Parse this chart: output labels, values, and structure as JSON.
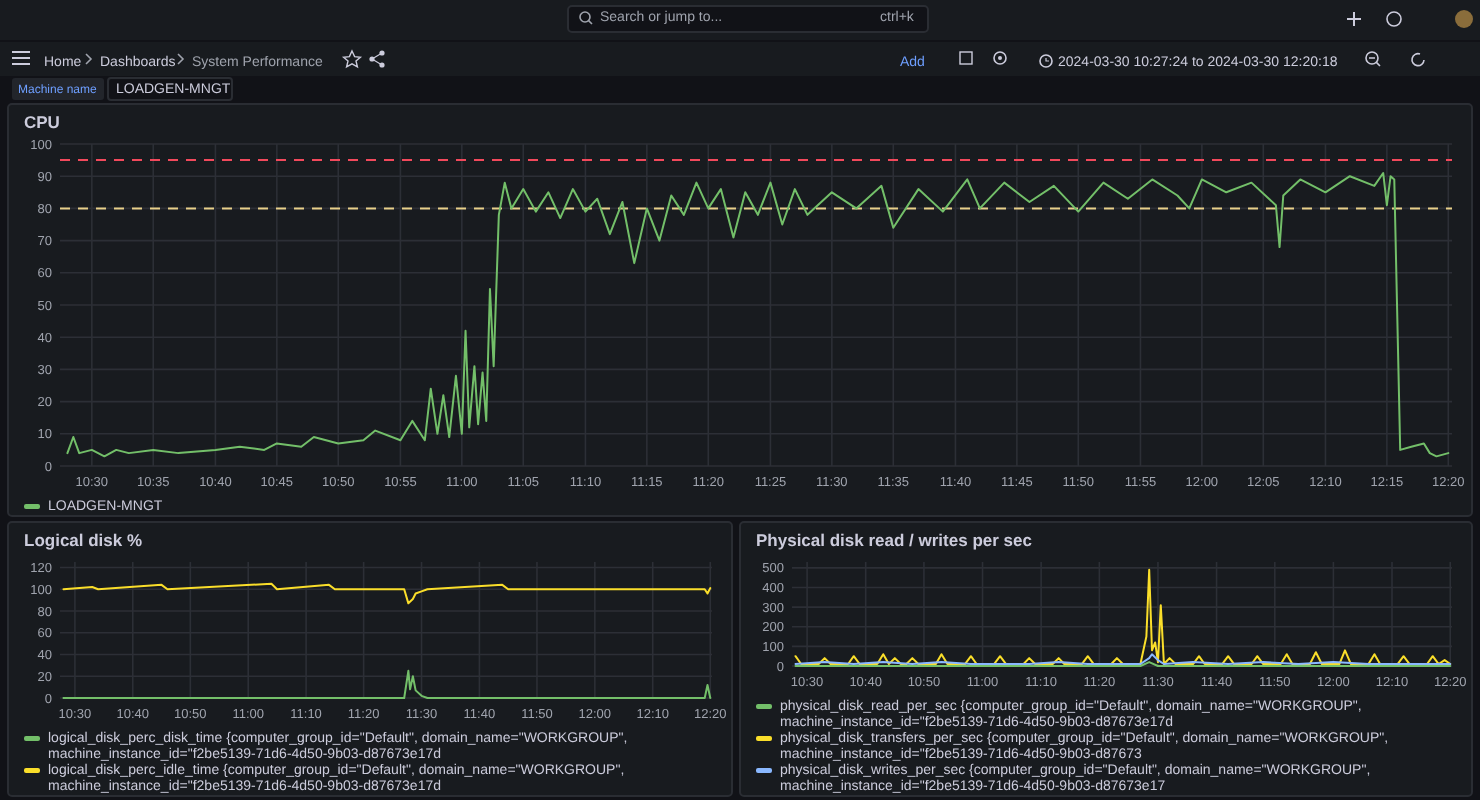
{
  "chart_data": [
    {
      "type": "other",
      "annotations": [
        "Home",
        "Dashboards",
        "System Performance",
        "Search or jump to...",
        "ctrl+k",
        "Add",
        "2024-03-30 10:27:24 to 2024-03-30 12:20:18",
        "Machine name",
        "LOADGEN-MNGT"
      ]
    },
    {
      "type": "line",
      "title": "CPU",
      "xlim": [
        10.457,
        12.338
      ],
      "ylim": [
        0,
        100
      ],
      "yticks": [
        0,
        10,
        20,
        30,
        40,
        50,
        60,
        70,
        80,
        90,
        100
      ],
      "xticks": [
        {
          "value": 10.5,
          "label": "10:30"
        },
        {
          "value": 10.583,
          "label": "10:35"
        },
        {
          "value": 10.667,
          "label": "10:40"
        },
        {
          "value": 10.75,
          "label": "10:45"
        },
        {
          "value": 10.833,
          "label": "10:50"
        },
        {
          "value": 10.917,
          "label": "10:55"
        },
        {
          "value": 11,
          "label": "11:00"
        },
        {
          "value": 11.083,
          "label": "11:05"
        },
        {
          "value": 11.167,
          "label": "11:10"
        },
        {
          "value": 11.25,
          "label": "11:15"
        },
        {
          "value": 11.333,
          "label": "11:20"
        },
        {
          "value": 11.417,
          "label": "11:25"
        },
        {
          "value": 11.5,
          "label": "11:30"
        },
        {
          "value": 11.583,
          "label": "11:35"
        },
        {
          "value": 11.667,
          "label": "11:40"
        },
        {
          "value": 11.75,
          "label": "11:45"
        },
        {
          "value": 11.833,
          "label": "11:50"
        },
        {
          "value": 11.917,
          "label": "11:55"
        },
        {
          "value": 12,
          "label": "12:00"
        },
        {
          "value": 12.083,
          "label": "12:05"
        },
        {
          "value": 12.167,
          "label": "12:10"
        },
        {
          "value": 12.25,
          "label": "12:15"
        },
        {
          "value": 12.333,
          "label": "12:20"
        }
      ],
      "grid": true,
      "legend": "bottom",
      "line_style": "solid",
      "ref_lines": [
        {
          "axis": "y",
          "value": 95,
          "color": "#f2495c",
          "line_style": "dashed"
        },
        {
          "axis": "y",
          "value": 80,
          "color": "#e8d08a",
          "line_style": "dashed"
        }
      ],
      "series": [
        {
          "name": "LOADGEN-MNGT",
          "color": "#73bf69",
          "x": [
            10.467,
            10.475,
            10.483,
            10.5,
            10.517,
            10.533,
            10.55,
            10.583,
            10.617,
            10.667,
            10.7,
            10.733,
            10.75,
            10.783,
            10.8,
            10.833,
            10.867,
            10.883,
            10.917,
            10.933,
            10.95,
            10.958,
            10.967,
            10.975,
            10.983,
            10.992,
            11.0,
            11.005,
            11.01,
            11.017,
            11.022,
            11.028,
            11.033,
            11.038,
            11.043,
            11.05,
            11.058,
            11.067,
            11.083,
            11.1,
            11.117,
            11.133,
            11.15,
            11.167,
            11.183,
            11.2,
            11.217,
            11.233,
            11.25,
            11.267,
            11.283,
            11.3,
            11.317,
            11.333,
            11.35,
            11.367,
            11.383,
            11.4,
            11.417,
            11.433,
            11.45,
            11.467,
            11.5,
            11.533,
            11.567,
            11.583,
            11.617,
            11.65,
            11.683,
            11.7,
            11.733,
            11.767,
            11.8,
            11.833,
            11.867,
            11.9,
            11.933,
            11.967,
            11.983,
            12.0,
            12.033,
            12.067,
            12.1,
            12.105,
            12.11,
            12.133,
            12.167,
            12.2,
            12.233,
            12.245,
            12.25,
            12.255,
            12.26,
            12.268,
            12.283,
            12.3,
            12.308,
            12.317,
            12.333
          ],
          "values": [
            4,
            9,
            4,
            5,
            3,
            5,
            4,
            5,
            4,
            5,
            6,
            5,
            7,
            6,
            9,
            7,
            8,
            11,
            8,
            14,
            8,
            24,
            10,
            22,
            9,
            28,
            10,
            42,
            12,
            31,
            13,
            29,
            14,
            55,
            31,
            78,
            88,
            80,
            86,
            79,
            85,
            77,
            86,
            79,
            83,
            72,
            82,
            63,
            80,
            70,
            84,
            78,
            88,
            80,
            86,
            71,
            85,
            78,
            88,
            75,
            86,
            78,
            85,
            80,
            87,
            74,
            86,
            79,
            89,
            80,
            88,
            82,
            87,
            79,
            88,
            83,
            89,
            84,
            80,
            89,
            85,
            88,
            81,
            68,
            84,
            89,
            85,
            90,
            87,
            91,
            81,
            90,
            89,
            5,
            6,
            7,
            4,
            3,
            4
          ]
        }
      ]
    },
    {
      "type": "line",
      "title": "Logical disk %",
      "xlim": [
        10.457,
        12.338
      ],
      "ylim": [
        0,
        125
      ],
      "yticks": [
        0,
        20,
        40,
        60,
        80,
        100,
        120
      ],
      "xticks": [
        {
          "value": 10.5,
          "label": "10:30"
        },
        {
          "value": 10.667,
          "label": "10:40"
        },
        {
          "value": 10.833,
          "label": "10:50"
        },
        {
          "value": 11,
          "label": "11:00"
        },
        {
          "value": 11.167,
          "label": "11:10"
        },
        {
          "value": 11.333,
          "label": "11:20"
        },
        {
          "value": 11.5,
          "label": "11:30"
        },
        {
          "value": 11.667,
          "label": "11:40"
        },
        {
          "value": 11.833,
          "label": "11:50"
        },
        {
          "value": 12,
          "label": "12:00"
        },
        {
          "value": 12.167,
          "label": "12:10"
        },
        {
          "value": 12.333,
          "label": "12:20"
        }
      ],
      "grid": true,
      "legend": "bottom",
      "line_style": "solid",
      "series": [
        {
          "name": "logical_disk_perc_disk_time {computer_group_id=\"Default\", domain_name=\"WORKGROUP\", machine_instance_id=\"f2be5139-71d6-4d50-9b03-d87673e17d",
          "color": "#73bf69",
          "x": [
            10.467,
            11.45,
            11.462,
            11.467,
            11.475,
            11.483,
            11.5,
            11.517,
            12.317,
            12.325,
            12.333
          ],
          "values": [
            0,
            0,
            25,
            8,
            20,
            7,
            2,
            0,
            0,
            12,
            0
          ]
        },
        {
          "name": "logical_disk_perc_idle_time {computer_group_id=\"Default\", domain_name=\"WORKGROUP\", machine_instance_id=\"f2be5139-71d6-4d50-9b03-d87673e17d",
          "color": "#fade2a",
          "x": [
            10.467,
            10.55,
            10.567,
            10.75,
            10.767,
            11.067,
            11.083,
            11.233,
            11.25,
            11.45,
            11.462,
            11.475,
            11.483,
            11.5,
            11.517,
            11.733,
            11.75,
            12.317,
            12.325,
            12.333
          ],
          "values": [
            100,
            102,
            100,
            104,
            100,
            105,
            100,
            104,
            100,
            100,
            87,
            91,
            96,
            98,
            100,
            104,
            100,
            100,
            96,
            101
          ]
        }
      ]
    },
    {
      "type": "line",
      "title": "Physical disk read / writes per sec",
      "xlim": [
        10.457,
        12.338
      ],
      "ylim": [
        0,
        530
      ],
      "yticks": [
        0,
        100,
        200,
        300,
        400,
        500
      ],
      "xticks": [
        {
          "value": 10.5,
          "label": "10:30"
        },
        {
          "value": 10.667,
          "label": "10:40"
        },
        {
          "value": 10.833,
          "label": "10:50"
        },
        {
          "value": 11,
          "label": "11:00"
        },
        {
          "value": 11.167,
          "label": "11:10"
        },
        {
          "value": 11.333,
          "label": "11:20"
        },
        {
          "value": 11.5,
          "label": "11:30"
        },
        {
          "value": 11.667,
          "label": "11:40"
        },
        {
          "value": 11.833,
          "label": "11:50"
        },
        {
          "value": 12,
          "label": "12:00"
        },
        {
          "value": 12.167,
          "label": "12:10"
        },
        {
          "value": 12.333,
          "label": "12:20"
        }
      ],
      "grid": true,
      "legend": "bottom",
      "line_style": "solid",
      "series": [
        {
          "name": "physical_disk_read_per_sec {computer_group_id=\"Default\", domain_name=\"WORKGROUP\", machine_instance_id=\"f2be5139-71d6-4d50-9b03-d87673e17d",
          "color": "#73bf69",
          "x": [
            10.467,
            11.45,
            11.475,
            11.5,
            12.333
          ],
          "values": [
            0,
            0,
            20,
            0,
            0
          ]
        },
        {
          "name": "physical_disk_transfers_per_sec {computer_group_id=\"Default\", domain_name=\"WORKGROUP\", machine_instance_id=\"f2be5139-71d6-4d50-9b03-d87673",
          "color": "#fade2a",
          "x": [
            10.467,
            10.483,
            10.533,
            10.55,
            10.567,
            10.617,
            10.633,
            10.65,
            10.7,
            10.717,
            10.733,
            10.75,
            10.767,
            10.783,
            10.8,
            10.817,
            10.867,
            10.883,
            10.9,
            10.95,
            10.967,
            10.983,
            11.033,
            11.05,
            11.067,
            11.117,
            11.133,
            11.15,
            11.2,
            11.217,
            11.233,
            11.283,
            11.3,
            11.317,
            11.367,
            11.383,
            11.4,
            11.45,
            11.467,
            11.475,
            11.483,
            11.492,
            11.5,
            11.508,
            11.517,
            11.533,
            11.55,
            11.6,
            11.617,
            11.633,
            11.683,
            11.7,
            11.717,
            11.767,
            11.783,
            11.8,
            11.85,
            11.867,
            11.883,
            11.933,
            11.95,
            11.967,
            12.017,
            12.033,
            12.05,
            12.1,
            12.117,
            12.133,
            12.183,
            12.2,
            12.217,
            12.267,
            12.283,
            12.3,
            12.317,
            12.333
          ],
          "values": [
            50,
            10,
            10,
            40,
            10,
            10,
            50,
            10,
            10,
            60,
            10,
            40,
            10,
            10,
            40,
            10,
            10,
            60,
            10,
            10,
            50,
            10,
            10,
            50,
            10,
            10,
            40,
            10,
            10,
            40,
            10,
            10,
            50,
            10,
            10,
            40,
            10,
            10,
            150,
            490,
            80,
            120,
            20,
            310,
            10,
            40,
            10,
            10,
            50,
            10,
            10,
            50,
            10,
            10,
            50,
            10,
            10,
            60,
            10,
            10,
            70,
            10,
            10,
            80,
            10,
            10,
            60,
            10,
            10,
            50,
            10,
            10,
            50,
            10,
            30,
            10
          ]
        },
        {
          "name": "physical_disk_writes_per_sec {computer_group_id=\"Default\", domain_name=\"WORKGROUP\", machine_instance_id=\"f2be5139-71d6-4d50-9b03-d87673e17",
          "color": "#8ab8ff",
          "x": [
            10.467,
            10.55,
            10.633,
            10.717,
            10.8,
            10.883,
            10.967,
            11.05,
            11.133,
            11.217,
            11.3,
            11.383,
            11.45,
            11.475,
            11.483,
            11.5,
            11.517,
            11.6,
            11.7,
            11.8,
            11.9,
            12.0,
            12.1,
            12.2,
            12.333
          ],
          "values": [
            10,
            20,
            10,
            20,
            10,
            20,
            10,
            10,
            10,
            20,
            10,
            10,
            10,
            40,
            60,
            30,
            10,
            20,
            10,
            20,
            10,
            20,
            10,
            10,
            10
          ]
        }
      ]
    }
  ]
}
